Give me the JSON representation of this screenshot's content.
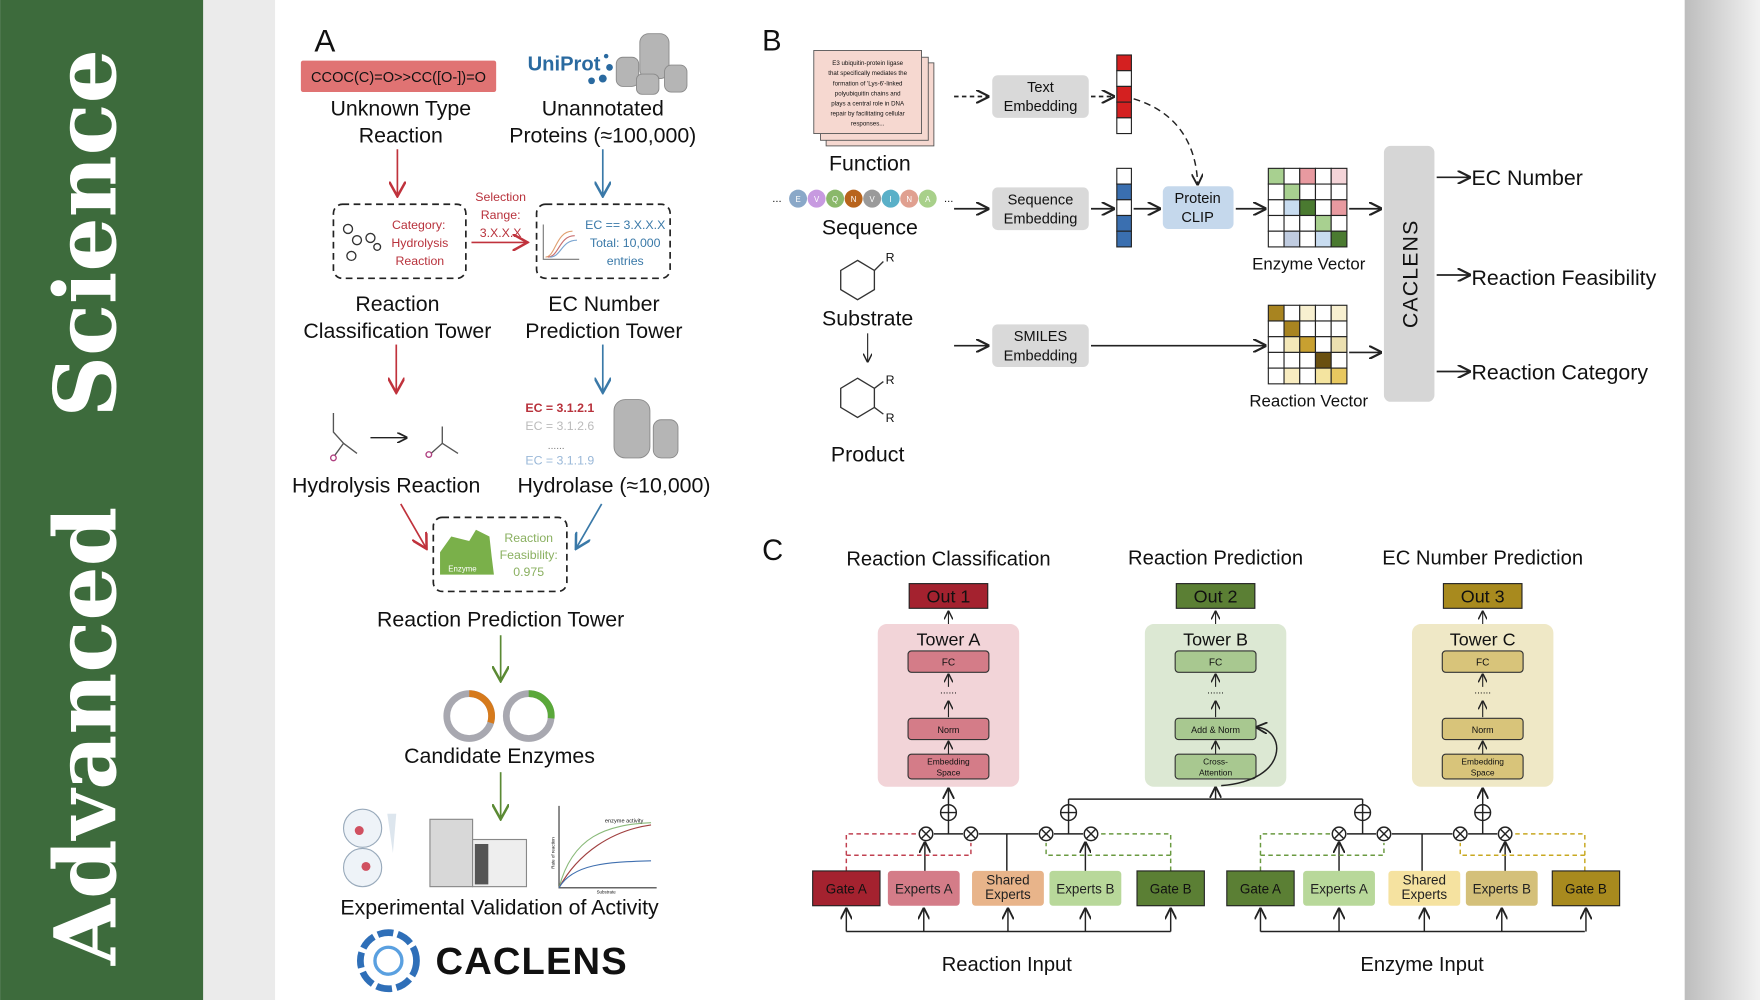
{
  "banner": {
    "title": "Advanced Science",
    "word1": "Advanced",
    "word2": "Science",
    "color": "#3d6b3c"
  },
  "panelA": {
    "label": "A",
    "smiles": "CCOC(C)=O>>CC([O-])=O",
    "unknown_reaction": [
      "Unknown Type",
      "Reaction"
    ],
    "uniprot_logo": "UniProt",
    "unannotated": [
      "Unannotated",
      "Proteins (≈100,000)"
    ],
    "category_box": [
      "Category:",
      "Hydrolysis",
      "Reaction"
    ],
    "selection_range": [
      "Selection",
      "Range:",
      "3.X.X.X"
    ],
    "ec_box": [
      "EC == 3.X.X.X",
      "Total: 10,000",
      "entries"
    ],
    "reaction_class_tower": [
      "Reaction",
      "Classification Tower"
    ],
    "ec_tower": [
      "EC Number",
      "Prediction Tower"
    ],
    "hydrolysis_reaction": "Hydrolysis Reaction",
    "ec_list": [
      "EC = 3.1.2.1",
      "EC = 3.1.2.6",
      "......",
      "EC = 3.1.1.9"
    ],
    "hydrolase": "Hydrolase (≈10,000)",
    "enzyme_icon_label": "Enzyme",
    "feasibility": [
      "Reaction",
      "Feasibility:",
      "0.975"
    ],
    "reaction_prediction_tower": "Reaction Prediction Tower",
    "candidate_enzymes": "Candidate Enzymes",
    "plot_title": "enzyme activity",
    "plot_ylabel": "Rate of reaction",
    "plot_xlabel": "Substrate",
    "experimental_validation": "Experimental Validation of Activity",
    "logo_text": "CACLENS"
  },
  "panelB": {
    "label": "B",
    "function_doc": [
      "E3 ubiquitin-protein ligase",
      "that specifically mediates the",
      "formation of 'Lys-6'-linked",
      "polyubiquitin chains and",
      "plays a central role in DNA",
      "repair by facilitating cellular",
      "responses..."
    ],
    "function": "Function",
    "sequence_letters": [
      "E",
      "V",
      "Q",
      "N",
      "V",
      "I",
      "N",
      "A"
    ],
    "sequence_ellipsis": "...",
    "sequence": "Sequence",
    "substrate": "Substrate",
    "product": "Product",
    "r_group": "R",
    "text_embedding": [
      "Text",
      "Embedding"
    ],
    "sequence_embedding": [
      "Sequence",
      "Embedding"
    ],
    "smiles_embedding": [
      "SMILES",
      "Embedding"
    ],
    "protein_clip": [
      "Protein",
      "CLIP"
    ],
    "enzyme_vector": "Enzyme Vector",
    "reaction_vector": "Reaction Vector",
    "caclens": "CACLENS",
    "outputs": [
      "EC Number",
      "Reaction Feasibility",
      "Reaction Category"
    ]
  },
  "panelC": {
    "label": "C",
    "titles": [
      "Reaction Classification",
      "Reaction Prediction",
      "EC Number Prediction"
    ],
    "outs": [
      "Out 1",
      "Out 2",
      "Out 3"
    ],
    "towers": [
      {
        "name": "Tower A",
        "top": "FC",
        "dots": "......",
        "mid": "Norm",
        "bottom": [
          "Embedding",
          "Space"
        ]
      },
      {
        "name": "Tower B",
        "top": "FC",
        "dots": "......",
        "mid": "Add & Norm",
        "bottom": [
          "Cross-",
          "Attention"
        ]
      },
      {
        "name": "Tower C",
        "top": "FC",
        "dots": "......",
        "mid": "Norm",
        "bottom": [
          "Embedding",
          "Space"
        ]
      }
    ],
    "reaction_modules": [
      [
        "Gate A"
      ],
      [
        "Experts A"
      ],
      [
        "Shared",
        "Experts"
      ],
      [
        "Experts B"
      ],
      [
        "Gate B"
      ]
    ],
    "enzyme_modules": [
      [
        "Gate A"
      ],
      [
        "Experts A"
      ],
      [
        "Shared",
        "Experts"
      ],
      [
        "Experts B"
      ],
      [
        "Gate B"
      ]
    ],
    "reaction_input": "Reaction Input",
    "enzyme_input": "Enzyme Input",
    "colors": {
      "red": "#a4222f",
      "green": "#5b7f34",
      "gold": "#a88a1e"
    }
  }
}
